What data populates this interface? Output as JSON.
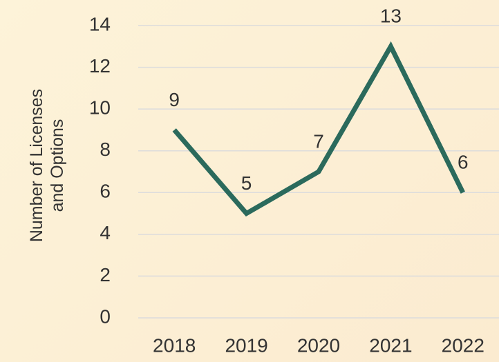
{
  "chart_data": {
    "type": "line",
    "y_label": "Number of Licenses and Options",
    "categories": [
      "2018",
      "2019",
      "2020",
      "2021",
      "2022"
    ],
    "series": [
      {
        "name": "Licenses and Options",
        "color": "#2b6a5c",
        "values": [
          9,
          5,
          7,
          13,
          6
        ]
      }
    ],
    "ylim": [
      0,
      14
    ],
    "yticks": [
      0,
      2,
      4,
      6,
      8,
      10,
      12,
      14
    ],
    "grid": true,
    "data_labels": true
  }
}
